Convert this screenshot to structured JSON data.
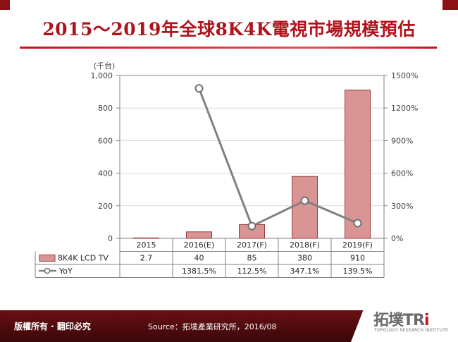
{
  "title": "2015～2019年全球8K4K電視市場規模預估",
  "footer": {
    "rights": "版權所有 · 翻印必究",
    "source": "Source：拓墣產業研究所，2016/08"
  },
  "logo": {
    "main": "拓墣TR",
    "accent": "i",
    "sub": "TOPOLOGY RESEARCH INSTITUTE"
  },
  "colors": {
    "title": "#b1121c",
    "bar_fill": "#d99594",
    "bar_stroke": "#9b3b3b",
    "line": "#808080",
    "footer": "#5a0c10"
  },
  "chart_data": {
    "type": "bar",
    "categories": [
      "2015",
      "2016(E)",
      "2017(F)",
      "2018(F)",
      "2019(F)"
    ],
    "left_axis": {
      "unit": "(千台)",
      "ticks": [
        "0",
        "200",
        "400",
        "600",
        "800",
        "1,000"
      ],
      "range": [
        0,
        1000
      ]
    },
    "right_axis": {
      "ticks": [
        "0%",
        "300%",
        "600%",
        "900%",
        "1200%",
        "1500%"
      ],
      "range": [
        0,
        1500
      ]
    },
    "series": [
      {
        "name": "8K4K LCD TV",
        "kind": "bar",
        "axis": "left",
        "values": [
          2.7,
          40,
          85,
          380,
          910
        ],
        "labels": [
          "2.7",
          "40",
          "85",
          "380",
          "910"
        ]
      },
      {
        "name": "YoY",
        "kind": "line",
        "axis": "right",
        "values": [
          null,
          1381.5,
          112.5,
          347.1,
          139.5
        ],
        "labels": [
          "",
          "1381.5%",
          "112.5%",
          "347.1%",
          "139.5%"
        ]
      }
    ],
    "grid": true,
    "legend": "data-table"
  }
}
